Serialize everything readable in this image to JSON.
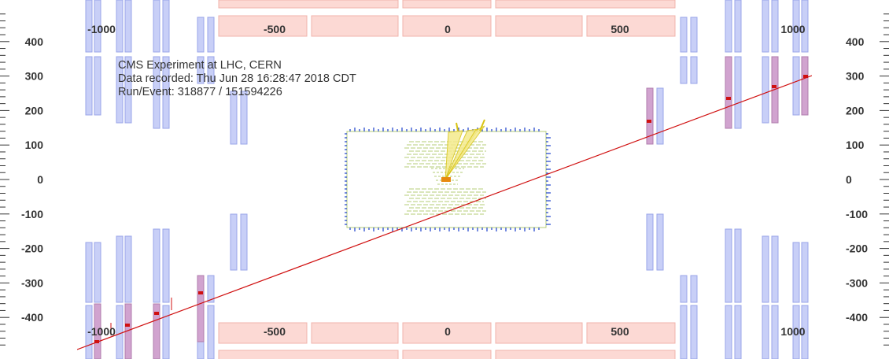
{
  "event_info": {
    "experiment": "CMS Experiment at LHC, CERN",
    "recorded": "Data recorded: Thu Jun 28 16:28:47 2018 CDT",
    "run_event": "Run/Event: 318877 / 151594226"
  },
  "y_axis_ticks": [
    "400",
    "300",
    "200",
    "100",
    "0",
    "-100",
    "-200",
    "-300",
    "-400"
  ],
  "z_axis_labels_top": [
    "-1000",
    "-500",
    "0",
    "500",
    "1000"
  ],
  "z_axis_labels_bottom": [
    "-1000",
    "-500",
    "0",
    "500",
    "1000"
  ],
  "colors": {
    "muon_chamber": "#c8cff7",
    "muon_chamber_hit": "#d1a3cf",
    "endcap_block": "#fcd9d4",
    "tracker_outline": "#b6cc77",
    "track": "#d01010",
    "calorimeter_hit": "#1a3fcc",
    "jet": "#e6d21e",
    "text": "#333333"
  }
}
